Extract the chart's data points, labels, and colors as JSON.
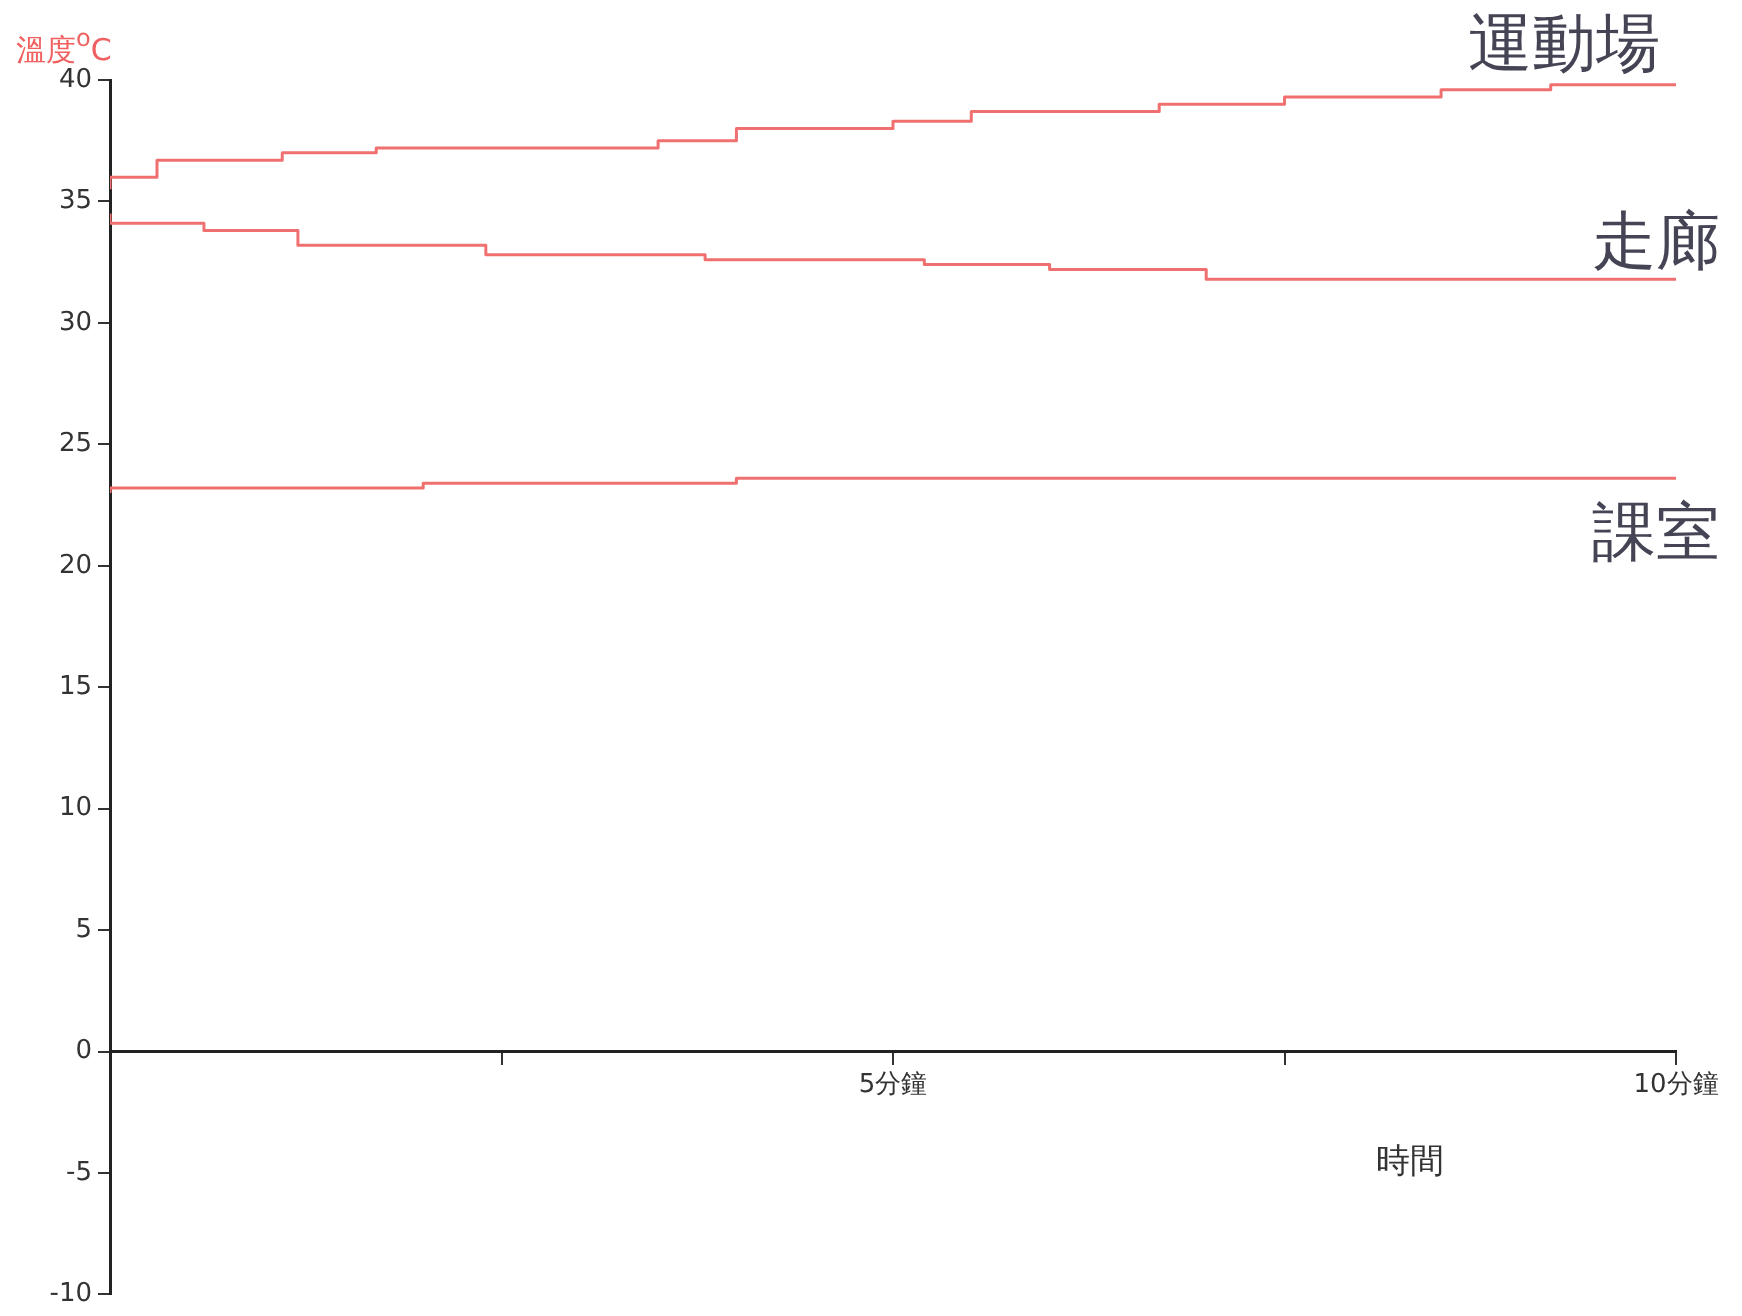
{
  "chart_data": {
    "type": "step",
    "ylabel": "溫度$^{o}$C",
    "xlabel": "時間",
    "xlim": [
      0,
      10
    ],
    "xticks": [
      {
        "value": 2.5,
        "label": null
      },
      {
        "value": 5,
        "label": "5分鐘"
      },
      {
        "value": 7.5,
        "label": null
      },
      {
        "value": 10,
        "label": "10分鐘"
      }
    ],
    "ylim": [
      -10,
      40
    ],
    "yticks": [
      -10,
      -5,
      0,
      5,
      10,
      15,
      20,
      25,
      30,
      35,
      40
    ],
    "grid": false,
    "legend": false,
    "series": [
      {
        "name": "運動場",
        "color": "#f07070",
        "x": [
          0,
          0.3,
          1.1,
          1.7,
          3.5,
          4,
          5,
          5.5,
          6.7,
          7.5,
          8.5,
          9.2,
          10
        ],
        "values": [
          35.5,
          36,
          36.7,
          37,
          37.2,
          37.5,
          38,
          38.3,
          38.7,
          39,
          39.3,
          39.6,
          39.8
        ]
      },
      {
        "name": "走廊",
        "color": "#f07070",
        "x": [
          0,
          0.6,
          1.2,
          2.4,
          3.8,
          5.2,
          6,
          7,
          8.1,
          10
        ],
        "values": [
          34.5,
          34.1,
          33.8,
          33.2,
          32.8,
          32.6,
          32.4,
          32.2,
          31.8,
          31.8
        ]
      },
      {
        "name": "課室",
        "color": "#f07070",
        "x": [
          0,
          2,
          4,
          5.5,
          10
        ],
        "values": [
          23,
          23.2,
          23.4,
          23.6,
          23.6
        ]
      }
    ]
  }
}
